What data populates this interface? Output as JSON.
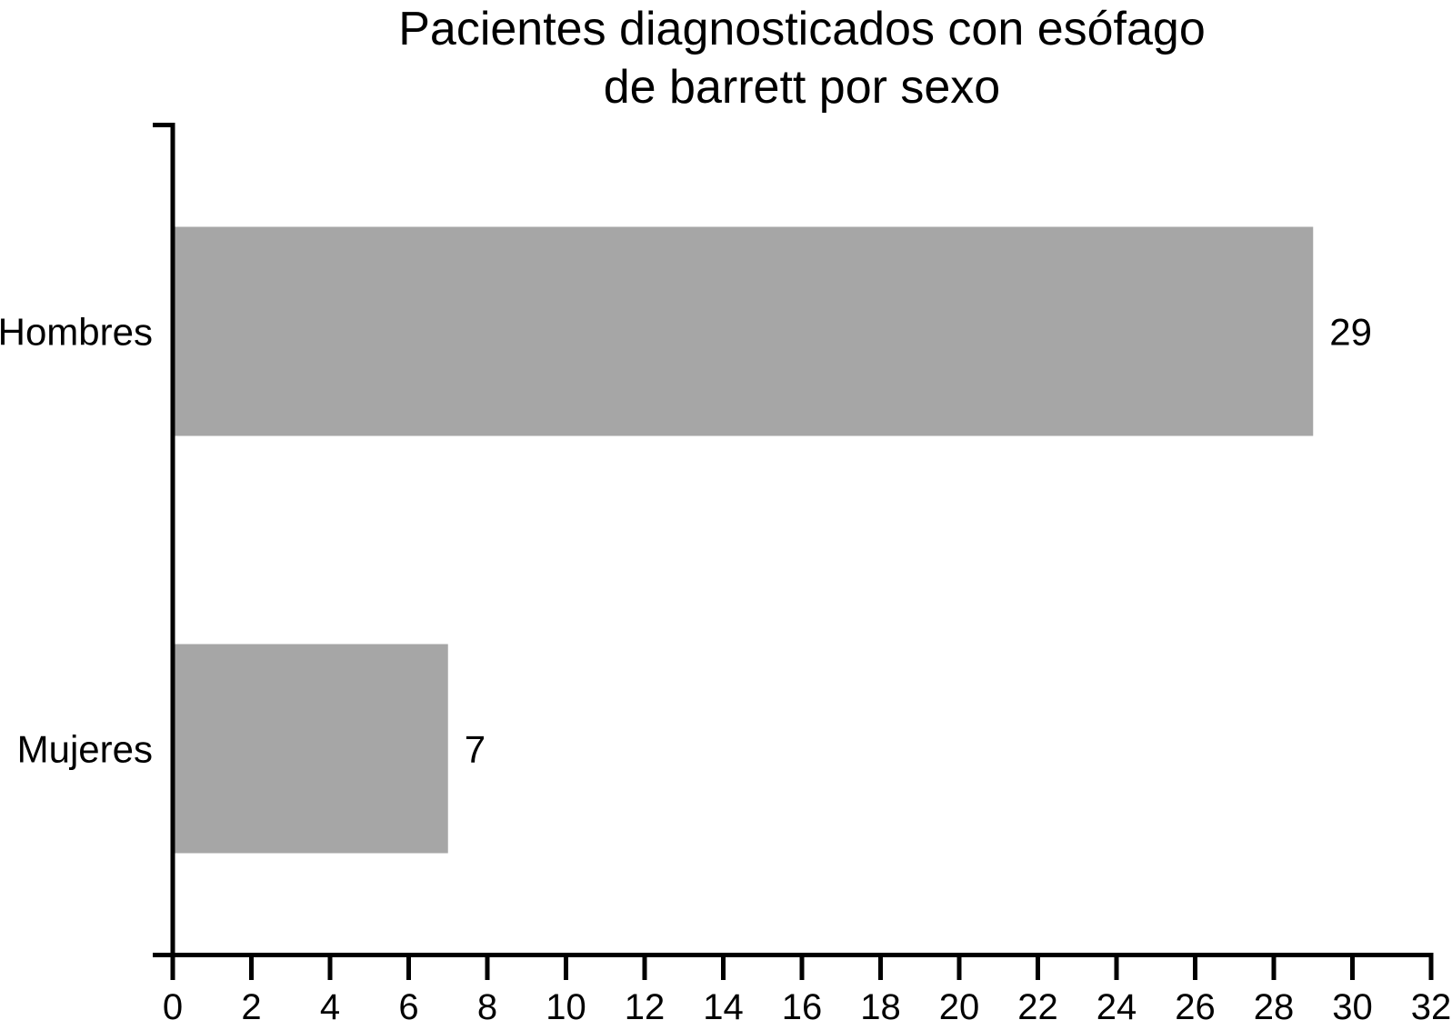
{
  "chart_data": {
    "type": "bar",
    "orientation": "horizontal",
    "title": "Pacientes diagnosticados con esófago de barrett por sexo",
    "title_lines": [
      "Pacientes diagnosticados con esófago",
      "de barrett por sexo"
    ],
    "categories": [
      "Hombres",
      "Mujeres"
    ],
    "values": [
      29,
      7
    ],
    "value_labels": [
      "29",
      "7"
    ],
    "xlabel": "",
    "ylabel": "",
    "xlim": [
      0,
      32
    ],
    "xticks": [
      0,
      2,
      4,
      6,
      8,
      10,
      12,
      14,
      16,
      18,
      20,
      22,
      24,
      26,
      28,
      30,
      32
    ],
    "grid": false,
    "legend": null,
    "colors": {
      "bar": "#a6a6a6",
      "axis": "#000000",
      "text": "#000000",
      "background": "#ffffff"
    }
  }
}
